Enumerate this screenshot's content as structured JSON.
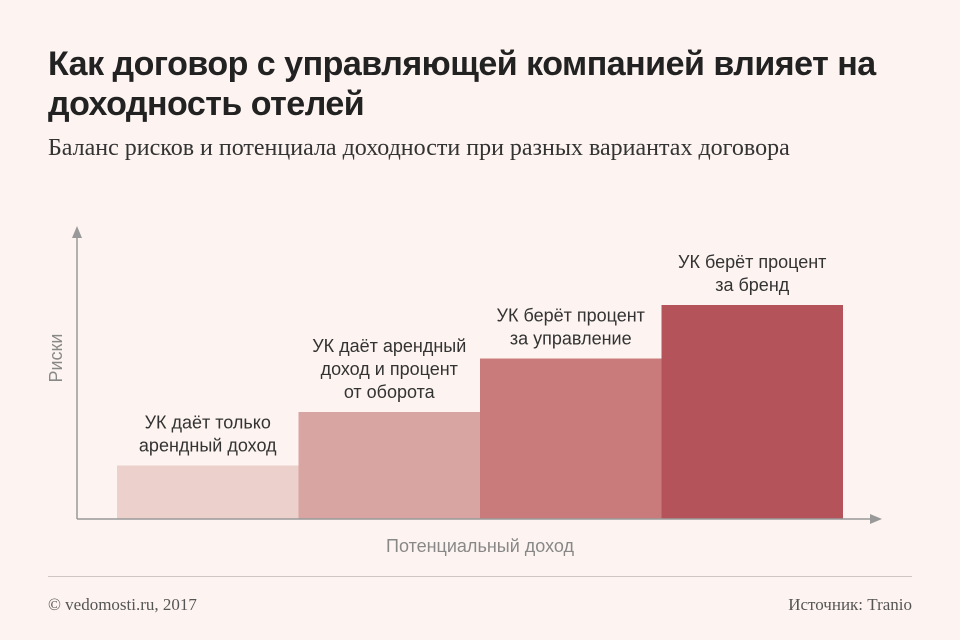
{
  "title": "Как договор с управляющей компанией влияет на доходность отелей",
  "subtitle": "Баланс рисков и потенциала доходности при разных вариантах договора",
  "footer": {
    "copyright": "© vedomosti.ru, 2017",
    "source": "Источник: Tranio"
  },
  "chart_data": {
    "type": "bar",
    "categories": [
      [
        "УК даёт только",
        "арендный доход"
      ],
      [
        "УК даёт арендный",
        "доход и процент",
        "от оборота"
      ],
      [
        "УК берёт процент",
        "за управление"
      ],
      [
        "УК берёт процент",
        "за бренд"
      ]
    ],
    "values": [
      1,
      2,
      3,
      4
    ],
    "xlabel": "Потенциальный доход",
    "ylabel": "Риски",
    "ylim": [
      0,
      5
    ],
    "grid": false,
    "colors": [
      "#ecd0cb",
      "#d9a5a2",
      "#c97b7b",
      "#b4545a"
    ]
  }
}
